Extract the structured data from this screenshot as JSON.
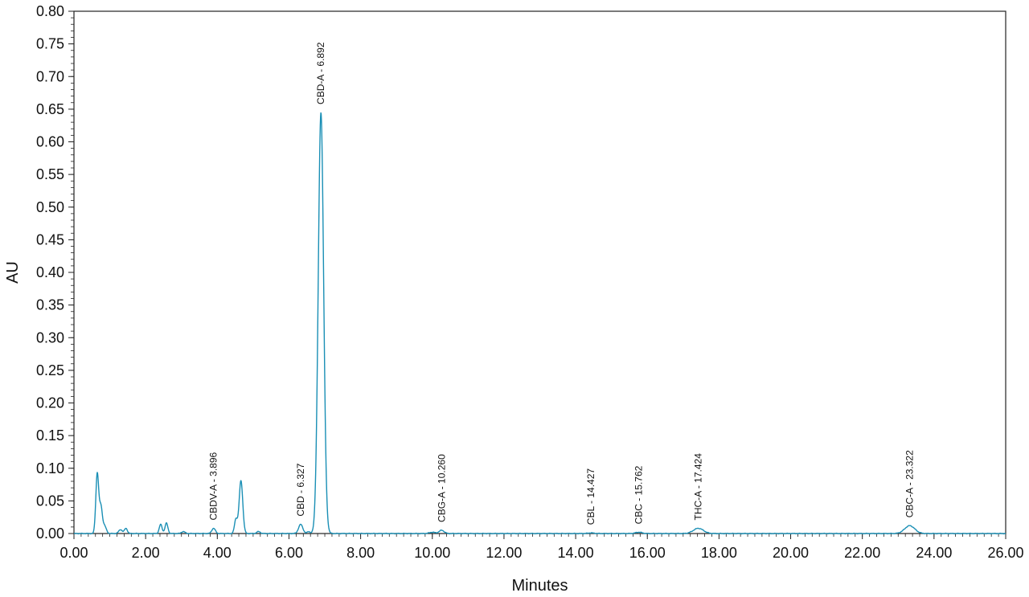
{
  "chart_data": {
    "type": "line",
    "title": "",
    "xlabel": "Minutes",
    "ylabel": "AU",
    "xlim": [
      0,
      26
    ],
    "ylim": [
      0,
      0.8
    ],
    "grid": false,
    "series_color": "#1a8fb5",
    "x_ticks": [
      "0.00",
      "2.00",
      "4.00",
      "6.00",
      "8.00",
      "10.00",
      "12.00",
      "14.00",
      "16.00",
      "18.00",
      "20.00",
      "22.00",
      "24.00",
      "26.00"
    ],
    "y_ticks": [
      "0.00",
      "0.05",
      "0.10",
      "0.15",
      "0.20",
      "0.25",
      "0.30",
      "0.35",
      "0.40",
      "0.45",
      "0.50",
      "0.55",
      "0.60",
      "0.65",
      "0.70",
      "0.75",
      "0.80"
    ],
    "peaks": [
      {
        "rt": 0.65,
        "height": 0.092,
        "width": 0.04
      },
      {
        "rt": 0.75,
        "height": 0.04,
        "width": 0.04
      },
      {
        "rt": 0.85,
        "height": 0.012,
        "width": 0.05
      },
      {
        "rt": 1.3,
        "height": 0.006,
        "width": 0.05
      },
      {
        "rt": 1.45,
        "height": 0.008,
        "width": 0.04
      },
      {
        "rt": 2.42,
        "height": 0.014,
        "width": 0.04
      },
      {
        "rt": 2.58,
        "height": 0.016,
        "width": 0.04
      },
      {
        "rt": 3.05,
        "height": 0.003,
        "width": 0.05
      },
      {
        "rt": 3.896,
        "height": 0.008,
        "width": 0.05
      },
      {
        "rt": 4.52,
        "height": 0.022,
        "width": 0.04
      },
      {
        "rt": 4.66,
        "height": 0.081,
        "width": 0.05
      },
      {
        "rt": 5.15,
        "height": 0.003,
        "width": 0.05
      },
      {
        "rt": 6.327,
        "height": 0.014,
        "width": 0.06
      },
      {
        "rt": 6.55,
        "height": 0.003,
        "width": 0.04
      },
      {
        "rt": 6.892,
        "height": 0.645,
        "width": 0.075
      },
      {
        "rt": 10.0,
        "height": 0.002,
        "width": 0.08
      },
      {
        "rt": 10.26,
        "height": 0.005,
        "width": 0.07
      },
      {
        "rt": 14.427,
        "height": 0.001,
        "width": 0.08
      },
      {
        "rt": 15.762,
        "height": 0.002,
        "width": 0.09
      },
      {
        "rt": 17.424,
        "height": 0.008,
        "width": 0.14
      },
      {
        "rt": 23.322,
        "height": 0.012,
        "width": 0.14
      }
    ],
    "annotations": [
      {
        "text": "CBDV-A - 3.896",
        "x": 3.896,
        "y": 0.008
      },
      {
        "text": "CBD - 6.327",
        "x": 6.327,
        "y": 0.014
      },
      {
        "text": "CBD-A - 6.892",
        "x": 6.892,
        "y": 0.645
      },
      {
        "text": "CBG-A - 10.260",
        "x": 10.26,
        "y": 0.005
      },
      {
        "text": "CBL - 14.427",
        "x": 14.427,
        "y": 0.001
      },
      {
        "text": "CBC - 15.762",
        "x": 15.762,
        "y": 0.002
      },
      {
        "text": "THC-A - 17.424",
        "x": 17.424,
        "y": 0.008
      },
      {
        "text": "CBC-A - 23.322",
        "x": 23.322,
        "y": 0.012
      }
    ]
  }
}
